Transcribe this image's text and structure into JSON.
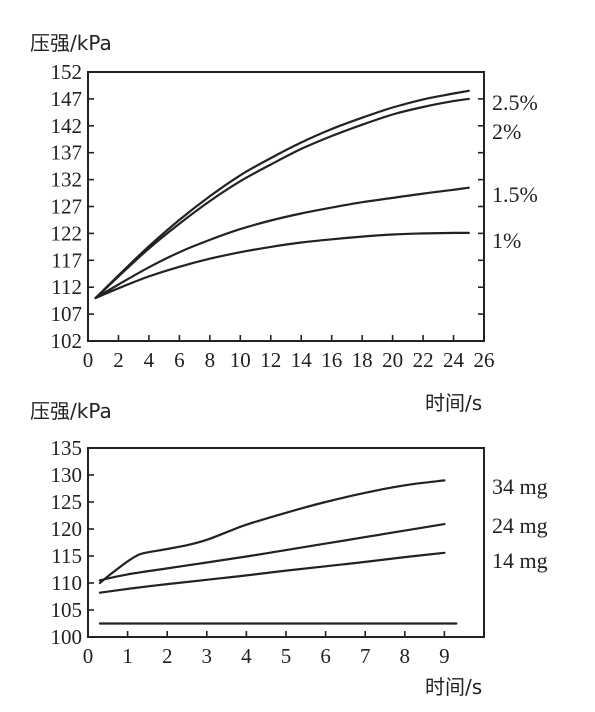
{
  "chart_data": [
    {
      "type": "line",
      "ylabel": "压强/kPa",
      "xlabel": "时间/s",
      "xlim": [
        0,
        26
      ],
      "ylim": [
        102,
        152
      ],
      "xticks": [
        "0",
        "2",
        "4",
        "6",
        "8",
        "10",
        "12",
        "14",
        "16",
        "18",
        "20",
        "22",
        "24",
        "26"
      ],
      "yticks": [
        "152",
        "147",
        "142",
        "137",
        "132",
        "127",
        "122",
        "117",
        "112",
        "107",
        "102"
      ],
      "series": [
        {
          "name": "2.5%",
          "x": [
            0.5,
            2,
            4,
            6,
            8,
            10,
            12,
            14,
            16,
            18,
            20,
            22,
            24,
            25
          ],
          "y": [
            110,
            114.2,
            119.6,
            124.5,
            128.9,
            132.8,
            136.0,
            138.9,
            141.4,
            143.5,
            145.4,
            146.9,
            148.0,
            148.5
          ]
        },
        {
          "name": "2%",
          "x": [
            0.5,
            2,
            4,
            6,
            8,
            10,
            12,
            14,
            16,
            18,
            20,
            22,
            24,
            25
          ],
          "y": [
            110,
            114.0,
            119.2,
            123.8,
            128.0,
            131.7,
            134.8,
            137.7,
            140.1,
            142.2,
            144.1,
            145.5,
            146.6,
            147.0
          ]
        },
        {
          "name": "1.5%",
          "x": [
            0.5,
            2,
            4,
            6,
            8,
            10,
            12,
            14,
            16,
            18,
            20,
            22,
            24,
            25
          ],
          "y": [
            110,
            112.5,
            115.7,
            118.5,
            120.8,
            122.8,
            124.4,
            125.7,
            126.8,
            127.8,
            128.6,
            129.4,
            130.1,
            130.5
          ]
        },
        {
          "name": "1%",
          "x": [
            0.5,
            2,
            4,
            6,
            8,
            10,
            12,
            14,
            16,
            18,
            20,
            22,
            24,
            25
          ],
          "y": [
            110,
            111.8,
            114.0,
            115.8,
            117.3,
            118.5,
            119.5,
            120.3,
            120.9,
            121.4,
            121.8,
            122.0,
            122.1,
            122.1
          ]
        }
      ]
    },
    {
      "type": "line",
      "ylabel": "压强/kPa",
      "xlabel": "时间/s",
      "xlim": [
        0,
        10
      ],
      "ylim": [
        100,
        135
      ],
      "xticks": [
        "0",
        "1",
        "2",
        "3",
        "4",
        "5",
        "6",
        "7",
        "8",
        "9"
      ],
      "yticks": [
        "135",
        "130",
        "125",
        "120",
        "115",
        "110",
        "105",
        "100"
      ],
      "series": [
        {
          "name": "34 mg",
          "x": [
            0.3,
            0.6,
            1.0,
            1.3,
            1.6,
            2.0,
            2.5,
            3.0,
            3.5,
            4.0,
            5.0,
            6.0,
            7.0,
            8.0,
            9.0
          ],
          "y": [
            110,
            111.8,
            114.0,
            115.3,
            115.8,
            116.3,
            117.0,
            118.0,
            119.4,
            120.8,
            123.0,
            125.0,
            126.7,
            128.1,
            129.0
          ]
        },
        {
          "name": "24 mg",
          "x": [
            0.3,
            1,
            2,
            3,
            4,
            5,
            6,
            7,
            8,
            9
          ],
          "y": [
            110.5,
            111.6,
            112.7,
            113.8,
            114.9,
            116.1,
            117.3,
            118.5,
            119.7,
            120.9
          ]
        },
        {
          "name": "14 mg",
          "x": [
            0.3,
            1,
            2,
            3,
            4,
            5,
            6,
            7,
            8,
            9
          ],
          "y": [
            108.2,
            108.9,
            109.8,
            110.6,
            111.4,
            112.3,
            113.1,
            113.9,
            114.8,
            115.6
          ]
        },
        {
          "name": "",
          "x": [
            0.3,
            9.3
          ],
          "y": [
            102.5,
            102.5
          ]
        }
      ]
    }
  ]
}
